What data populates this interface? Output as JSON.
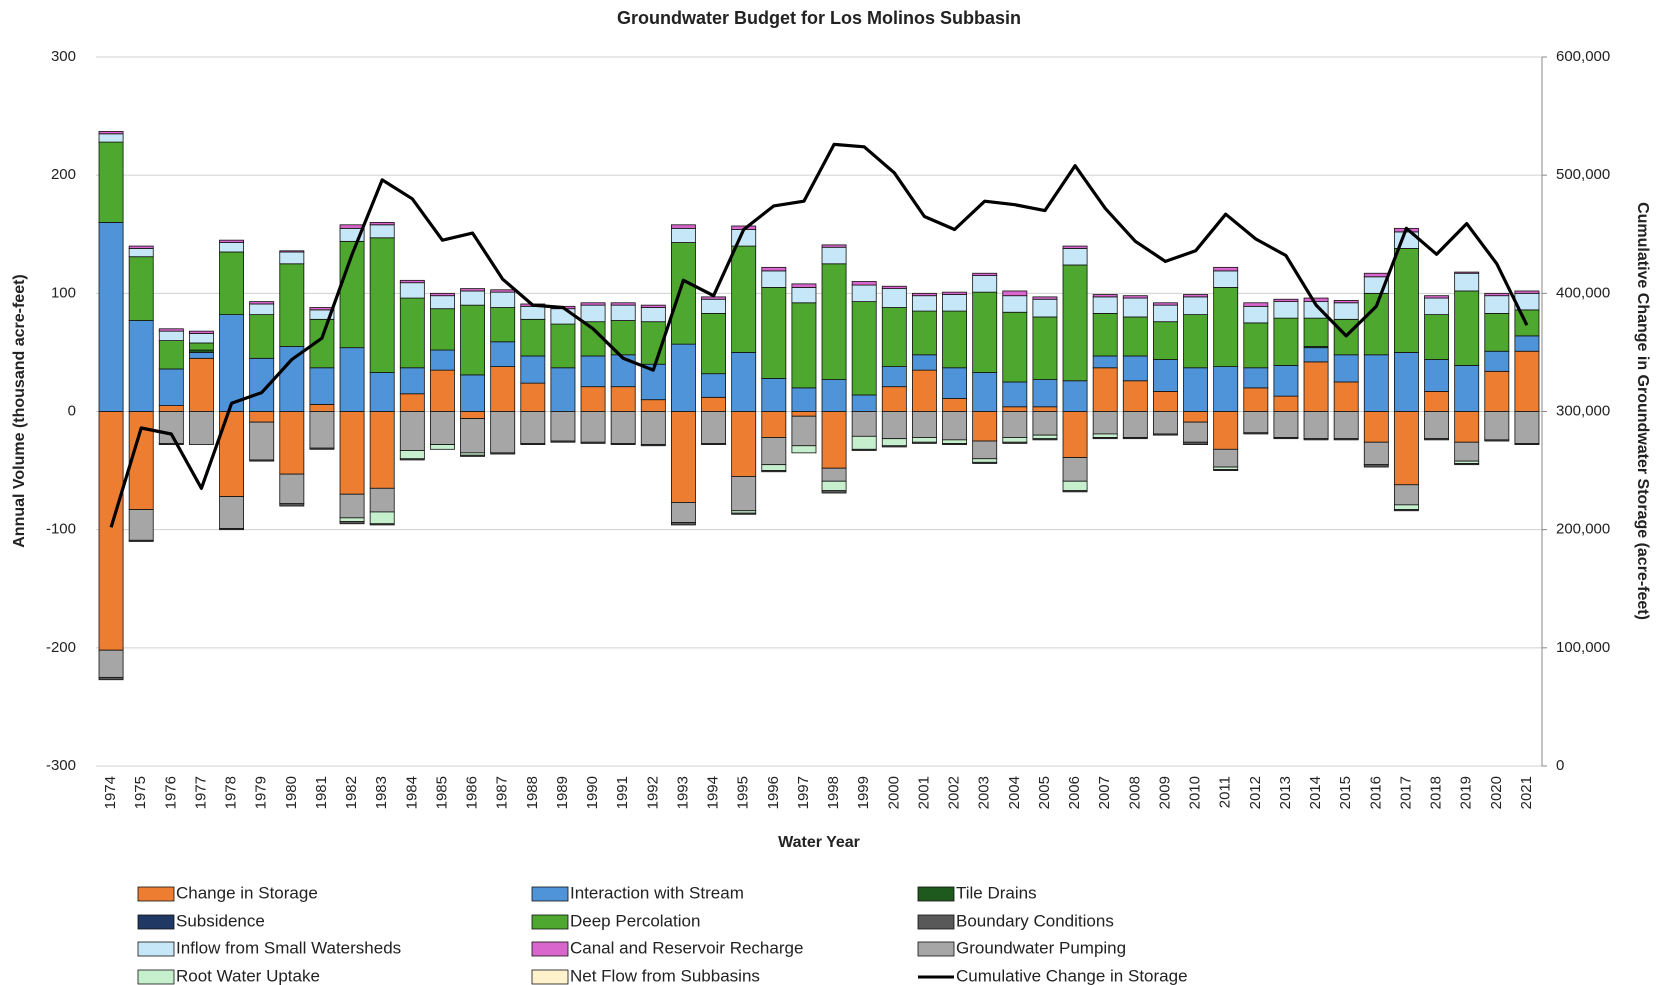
{
  "chart_data": {
    "type": "bar",
    "stacked": true,
    "title": "Groundwater Budget for Los Molinos Subbasin",
    "x_label": "Water Year",
    "y_label": "Annual Volume (thousand acre-feet)",
    "y2_label": "Cumulative Change in Groundwater Storage (acre-feet)",
    "categories": [
      "1974",
      "1975",
      "1976",
      "1977",
      "1978",
      "1979",
      "1980",
      "1981",
      "1982",
      "1983",
      "1984",
      "1985",
      "1986",
      "1987",
      "1988",
      "1989",
      "1990",
      "1991",
      "1992",
      "1993",
      "1994",
      "1995",
      "1996",
      "1997",
      "1998",
      "1999",
      "2000",
      "2001",
      "2002",
      "2003",
      "2004",
      "2005",
      "2006",
      "2007",
      "2008",
      "2009",
      "2010",
      "2011",
      "2012",
      "2013",
      "2014",
      "2015",
      "2016",
      "2017",
      "2018",
      "2019",
      "2020",
      "2021"
    ],
    "ylim": [
      -300,
      300
    ],
    "yticks": [
      -300,
      -200,
      -100,
      0,
      100,
      200,
      300
    ],
    "y2lim": [
      0,
      600000
    ],
    "y2ticks": [
      0,
      {
        "value": 100000,
        "label": "100,000"
      },
      {
        "value": 200000,
        "label": "200,000"
      },
      {
        "value": 300000,
        "label": "300,000"
      },
      {
        "value": 400000,
        "label": "400,000"
      },
      {
        "value": 500000,
        "label": "500,000"
      },
      {
        "value": 600000,
        "label": "600,000"
      }
    ],
    "grid": true,
    "legend": "bottom",
    "series": [
      {
        "name": "Change in Storage",
        "color": "#ed7d31",
        "values": [
          -202,
          -83,
          5,
          45,
          -72,
          -9,
          -53,
          6,
          -70,
          -65,
          15,
          35,
          -6,
          38,
          24,
          0,
          21,
          21,
          10,
          -77,
          12,
          -55,
          -22,
          -4,
          -48,
          0,
          21,
          35,
          11,
          -25,
          4,
          4,
          -39,
          37,
          26,
          17,
          -9,
          -32,
          20,
          13,
          42,
          25,
          -26,
          -62,
          17,
          -26,
          34,
          51
        ]
      },
      {
        "name": "Interaction with Stream",
        "color": "#4f94d8",
        "values": [
          160,
          77,
          31,
          5,
          82,
          45,
          55,
          31,
          54,
          33,
          22,
          17,
          31,
          21,
          23,
          37,
          26,
          27,
          30,
          57,
          20,
          50,
          28,
          20,
          27,
          14,
          17,
          13,
          26,
          33,
          21,
          23,
          26,
          10,
          21,
          27,
          37,
          38,
          17,
          26,
          12,
          23,
          48,
          50,
          27,
          39,
          17,
          13
        ]
      },
      {
        "name": "Tile Drains",
        "color": "#1e5a1e",
        "values": [
          0,
          0,
          0,
          2,
          0,
          0,
          0,
          0,
          0,
          0,
          0,
          0,
          0,
          0,
          0,
          0,
          0,
          0,
          0,
          0,
          0,
          0,
          0,
          0,
          0,
          0,
          0,
          0,
          0,
          0,
          0,
          0,
          0,
          0,
          0,
          0,
          0,
          0,
          0,
          0,
          1,
          0,
          0,
          0,
          0,
          0,
          0,
          0
        ]
      },
      {
        "name": "Subsidence",
        "color": "#1f3864",
        "values": [
          0,
          0,
          0,
          0,
          0,
          0,
          0,
          0,
          0,
          0,
          0,
          0,
          0,
          0,
          0,
          0,
          0,
          0,
          0,
          0,
          0,
          0,
          0,
          0,
          0,
          0,
          0,
          0,
          0,
          0,
          0,
          0,
          0,
          0,
          0,
          0,
          0,
          0,
          0,
          0,
          0,
          0,
          0,
          0,
          0,
          0,
          0,
          0
        ]
      },
      {
        "name": "Deep Percolation",
        "color": "#4ea72e",
        "values": [
          68,
          54,
          24,
          6,
          53,
          37,
          70,
          41,
          90,
          114,
          59,
          35,
          59,
          29,
          31,
          37,
          29,
          29,
          36,
          86,
          51,
          90,
          77,
          72,
          98,
          79,
          50,
          37,
          48,
          68,
          59,
          53,
          98,
          36,
          33,
          32,
          45,
          67,
          38,
          40,
          24,
          30,
          52,
          88,
          38,
          63,
          32,
          22
        ]
      },
      {
        "name": "Boundary Conditions",
        "color": "#595959",
        "values": [
          -2,
          -1,
          -1,
          0,
          -1,
          -1,
          -2,
          -1,
          -2,
          -1,
          -1,
          0,
          -1,
          -1,
          -1,
          -1,
          -1,
          -1,
          -1,
          -2,
          -1,
          -1,
          -1,
          0,
          -2,
          -1,
          -1,
          -1,
          -1,
          -1,
          -1,
          -1,
          -1,
          -1,
          -1,
          -1,
          -2,
          -1,
          -1,
          -1,
          -1,
          -1,
          -2,
          -1,
          -1,
          -1,
          -1,
          -1
        ]
      },
      {
        "name": "Inflow from Small Watersheds",
        "color": "#c6e7f7",
        "values": [
          7,
          7,
          8,
          8,
          8,
          9,
          10,
          8,
          11,
          11,
          13,
          11,
          12,
          13,
          11,
          13,
          14,
          13,
          12,
          12,
          12,
          14,
          14,
          13,
          14,
          14,
          16,
          13,
          14,
          14,
          14,
          15,
          14,
          14,
          16,
          14,
          15,
          14,
          14,
          14,
          14,
          14,
          14,
          14,
          14,
          15,
          15,
          14
        ]
      },
      {
        "name": "Canal and Reservoir Recharge",
        "color": "#d966cc",
        "values": [
          2,
          2,
          2,
          2,
          2,
          2,
          1,
          2,
          3,
          2,
          2,
          2,
          2,
          2,
          2,
          2,
          2,
          2,
          2,
          3,
          2,
          3,
          3,
          3,
          2,
          3,
          2,
          2,
          2,
          2,
          4,
          2,
          2,
          2,
          2,
          2,
          2,
          3,
          3,
          2,
          3,
          2,
          3,
          3,
          2,
          1,
          2,
          2
        ]
      },
      {
        "name": "Groundwater Pumping",
        "color": "#a6a6a6",
        "values": [
          -23,
          -26,
          -27,
          -28,
          -27,
          -32,
          -25,
          -31,
          -20,
          -20,
          -33,
          -28,
          -29,
          -35,
          -27,
          -25,
          -26,
          -27,
          -28,
          -17,
          -27,
          -29,
          -23,
          -25,
          -11,
          -21,
          -23,
          -22,
          -24,
          -15,
          -22,
          -20,
          -20,
          -19,
          -22,
          -19,
          -17,
          -15,
          -18,
          -22,
          -23,
          -23,
          -19,
          -17,
          -23,
          -16,
          -24,
          -27
        ]
      },
      {
        "name": "Root Water Uptake",
        "color": "#c6efce",
        "values": [
          0,
          0,
          0,
          0,
          0,
          0,
          0,
          0,
          -3,
          -10,
          -7,
          -4,
          -2,
          0,
          0,
          0,
          0,
          0,
          0,
          0,
          0,
          -2,
          -5,
          -6,
          -8,
          -11,
          -6,
          -4,
          -3,
          -3,
          -4,
          -3,
          -8,
          -3,
          0,
          0,
          0,
          -2,
          0,
          0,
          0,
          0,
          0,
          -4,
          0,
          -2,
          0,
          0
        ]
      },
      {
        "name": "Net Flow from Subbasins",
        "color": "#fff2cc",
        "values": [
          0,
          0,
          0,
          0,
          0,
          0,
          0,
          0,
          0,
          0,
          0,
          0,
          0,
          0,
          0,
          0,
          0,
          0,
          0,
          0,
          0,
          0,
          0,
          0,
          0,
          0,
          0,
          0,
          0,
          0,
          0,
          0,
          0,
          0,
          0,
          0,
          0,
          0,
          0,
          0,
          0,
          0,
          0,
          0,
          0,
          0,
          0,
          0
        ]
      },
      {
        "name": "Cumulative Change in Storage",
        "color": "#000000",
        "type": "line",
        "axis": "y2",
        "values": [
          202000,
          286000,
          281000,
          235000,
          307000,
          316000,
          344000,
          362000,
          433000,
          496000,
          480000,
          445000,
          451000,
          412000,
          390000,
          388000,
          370000,
          345000,
          335000,
          411000,
          398000,
          454000,
          474000,
          478000,
          526000,
          524000,
          502000,
          465000,
          454000,
          478000,
          475000,
          470000,
          508000,
          472000,
          444000,
          427000,
          436000,
          467000,
          446000,
          432000,
          390000,
          364000,
          389000,
          455000,
          433000,
          459000,
          425000,
          373000
        ]
      }
    ]
  }
}
